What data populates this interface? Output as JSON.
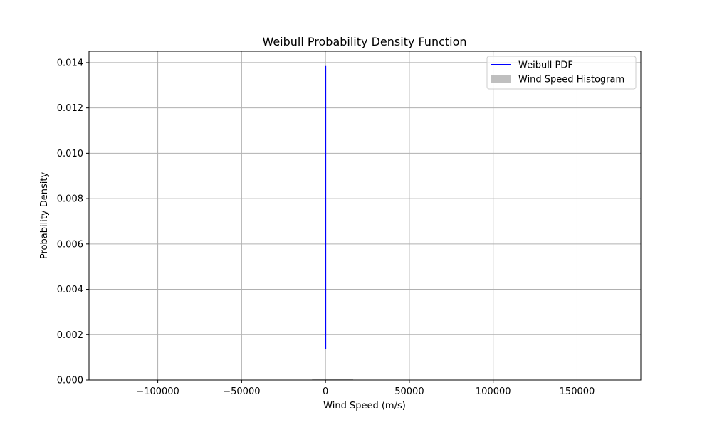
{
  "chart_data": {
    "type": "line",
    "title": "Weibull Probability Density Function",
    "xlabel": "Wind Speed (m/s)",
    "ylabel": "Probability Density",
    "xlim": [
      -141000,
      188000
    ],
    "ylim": [
      0,
      0.0145
    ],
    "xticks": [
      -100000,
      -50000,
      0,
      50000,
      100000,
      150000
    ],
    "xtick_labels": [
      "−100000",
      "−50000",
      "0",
      "50000",
      "100000",
      "150000"
    ],
    "yticks": [
      0,
      0.002,
      0.004,
      0.006,
      0.008,
      0.01,
      0.012,
      0.014
    ],
    "ytick_labels": [
      "0.000",
      "0.002",
      "0.004",
      "0.006",
      "0.008",
      "0.010",
      "0.012",
      "0.014"
    ],
    "grid": true,
    "legend_position": "top-right",
    "series": [
      {
        "name": "Weibull PDF",
        "kind": "line",
        "color": "#0000ff",
        "x": [
          0,
          0
        ],
        "y": [
          0.00135,
          0.01385
        ]
      },
      {
        "name": "Wind Speed Histogram",
        "kind": "histogram",
        "color": "#808080",
        "bins": [
          {
            "x0": -8000,
            "x1": 16500,
            "height": 2e-05
          }
        ]
      }
    ]
  }
}
